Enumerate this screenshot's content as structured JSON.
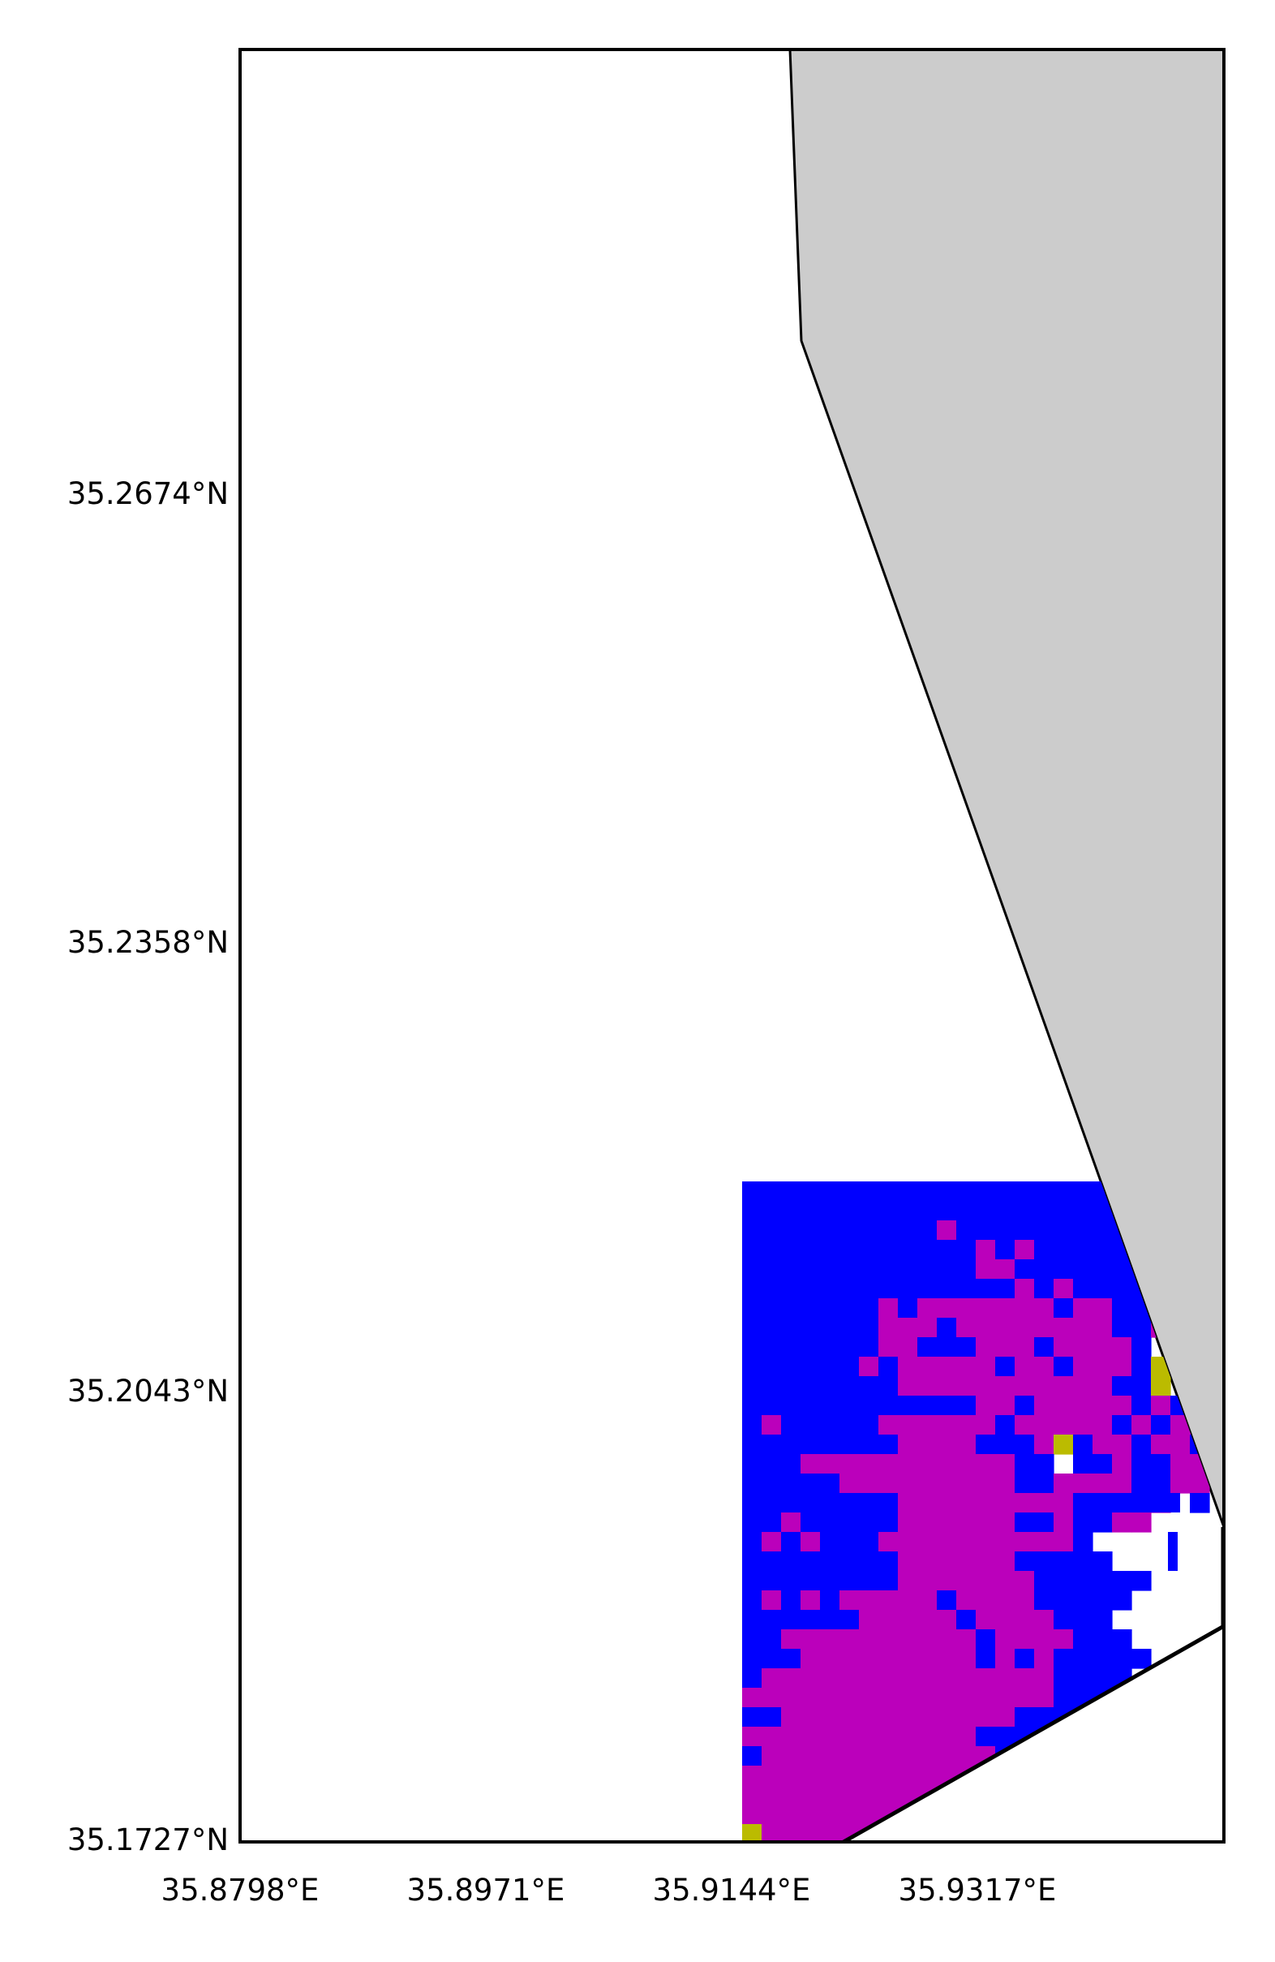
{
  "map": {
    "x_ticks": [
      "35.8798°E",
      "35.8971°E",
      "35.9144°E",
      "35.9317°E"
    ],
    "y_ticks": [
      "35.2674°N",
      "35.2358°N",
      "35.2043°N",
      "35.1727°N"
    ]
  },
  "colors": {
    "land": "#cccccc",
    "class_blue": "#0000ff",
    "class_magenta": "#bb00bb",
    "class_olive": "#bbbb00",
    "frame": "#000000"
  },
  "legend": {
    "grid_cell_classes": [
      "blue",
      "magenta",
      "olive"
    ]
  }
}
